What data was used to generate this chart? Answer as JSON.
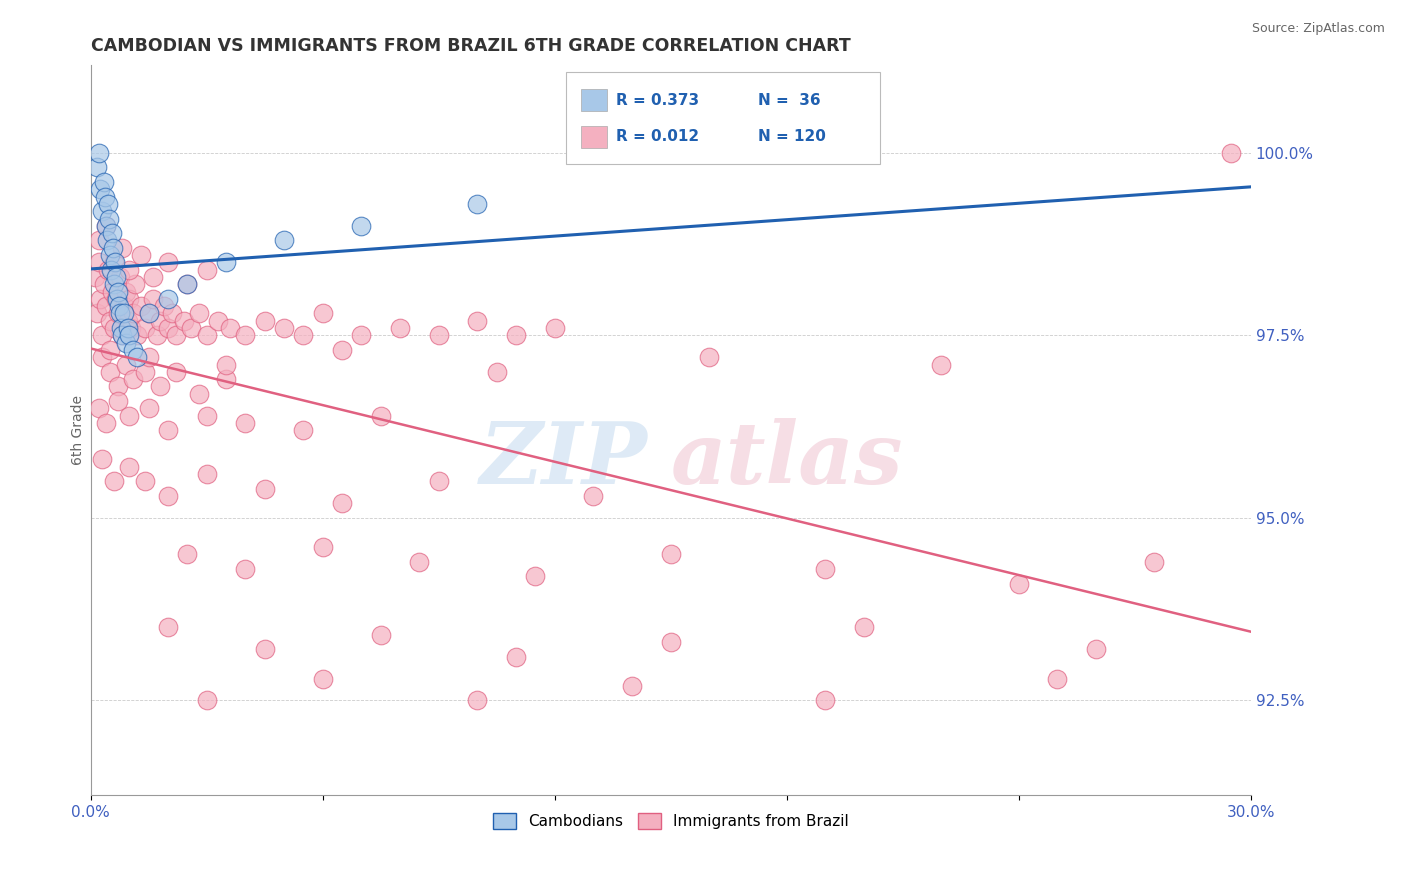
{
  "title": "CAMBODIAN VS IMMIGRANTS FROM BRAZIL 6TH GRADE CORRELATION CHART",
  "source": "Source: ZipAtlas.com",
  "ylabel": "6th Grade",
  "right_yticks": [
    92.5,
    95.0,
    97.5,
    100.0
  ],
  "xlim": [
    0.0,
    30.0
  ],
  "ylim": [
    91.2,
    101.2
  ],
  "legend_r1": "R = 0.373",
  "legend_n1": "N =  36",
  "legend_r2": "R = 0.012",
  "legend_n2": "N = 120",
  "legend_label1": "Cambodians",
  "legend_label2": "Immigrants from Brazil",
  "cambodian_color": "#a8c8e8",
  "brazil_color": "#f4b0c0",
  "trendline1_color": "#2060b0",
  "trendline2_color": "#e06080",
  "watermark_zip_color": "#c8ddf0",
  "watermark_atlas_color": "#f0c8d4",
  "camb_x": [
    0.15,
    0.2,
    0.25,
    0.3,
    0.35,
    0.38,
    0.4,
    0.42,
    0.45,
    0.48,
    0.5,
    0.52,
    0.55,
    0.58,
    0.6,
    0.62,
    0.65,
    0.68,
    0.7,
    0.72,
    0.75,
    0.78,
    0.8,
    0.85,
    0.9,
    0.95,
    1.0,
    1.1,
    1.2,
    1.5,
    2.0,
    2.5,
    3.5,
    5.0,
    7.0,
    10.0
  ],
  "camb_y": [
    99.8,
    100.0,
    99.5,
    99.2,
    99.6,
    99.4,
    99.0,
    98.8,
    99.3,
    99.1,
    98.6,
    98.4,
    98.9,
    98.7,
    98.2,
    98.5,
    98.3,
    98.0,
    98.1,
    97.9,
    97.8,
    97.6,
    97.5,
    97.8,
    97.4,
    97.6,
    97.5,
    97.3,
    97.2,
    97.8,
    98.0,
    98.2,
    98.5,
    98.8,
    99.0,
    99.3
  ],
  "braz_x": [
    0.1,
    0.15,
    0.2,
    0.25,
    0.3,
    0.35,
    0.4,
    0.45,
    0.5,
    0.55,
    0.6,
    0.65,
    0.7,
    0.75,
    0.8,
    0.85,
    0.9,
    0.95,
    1.0,
    1.05,
    1.1,
    1.15,
    1.2,
    1.3,
    1.4,
    1.5,
    1.6,
    1.7,
    1.8,
    1.9,
    2.0,
    2.1,
    2.2,
    2.4,
    2.6,
    2.8,
    3.0,
    3.3,
    3.6,
    4.0,
    4.5,
    5.0,
    5.5,
    6.0,
    7.0,
    8.0,
    9.0,
    10.0,
    11.0,
    12.0,
    0.2,
    0.4,
    0.6,
    0.8,
    1.0,
    1.3,
    1.6,
    2.0,
    2.5,
    3.0,
    0.3,
    0.5,
    0.7,
    0.9,
    1.1,
    1.4,
    1.8,
    2.2,
    2.8,
    3.5,
    0.2,
    0.4,
    0.7,
    1.0,
    1.5,
    2.0,
    3.0,
    4.0,
    5.5,
    7.5,
    0.3,
    0.6,
    1.0,
    1.4,
    2.0,
    3.0,
    4.5,
    6.5,
    9.0,
    13.0,
    2.5,
    4.0,
    6.0,
    8.5,
    11.5,
    15.0,
    19.0,
    24.0,
    27.5,
    29.5,
    2.0,
    4.5,
    7.5,
    11.0,
    15.0,
    20.0,
    26.0,
    3.0,
    6.0,
    10.0,
    14.0,
    19.0,
    25.0,
    0.5,
    1.5,
    3.5,
    6.5,
    10.5,
    16.0,
    22.0
  ],
  "braz_y": [
    98.3,
    97.8,
    98.5,
    98.0,
    97.5,
    98.2,
    97.9,
    98.4,
    97.7,
    98.1,
    97.6,
    98.0,
    97.8,
    98.3,
    97.5,
    97.9,
    98.1,
    97.7,
    98.0,
    97.6,
    97.8,
    98.2,
    97.5,
    97.9,
    97.6,
    97.8,
    98.0,
    97.5,
    97.7,
    97.9,
    97.6,
    97.8,
    97.5,
    97.7,
    97.6,
    97.8,
    97.5,
    97.7,
    97.6,
    97.5,
    97.7,
    97.6,
    97.5,
    97.8,
    97.5,
    97.6,
    97.5,
    97.7,
    97.5,
    97.6,
    98.8,
    99.0,
    98.5,
    98.7,
    98.4,
    98.6,
    98.3,
    98.5,
    98.2,
    98.4,
    97.2,
    97.0,
    96.8,
    97.1,
    96.9,
    97.0,
    96.8,
    97.0,
    96.7,
    96.9,
    96.5,
    96.3,
    96.6,
    96.4,
    96.5,
    96.2,
    96.4,
    96.3,
    96.2,
    96.4,
    95.8,
    95.5,
    95.7,
    95.5,
    95.3,
    95.6,
    95.4,
    95.2,
    95.5,
    95.3,
    94.5,
    94.3,
    94.6,
    94.4,
    94.2,
    94.5,
    94.3,
    94.1,
    94.4,
    100.0,
    93.5,
    93.2,
    93.4,
    93.1,
    93.3,
    93.5,
    93.2,
    92.5,
    92.8,
    92.5,
    92.7,
    92.5,
    92.8,
    97.3,
    97.2,
    97.1,
    97.3,
    97.0,
    97.2,
    97.1
  ]
}
